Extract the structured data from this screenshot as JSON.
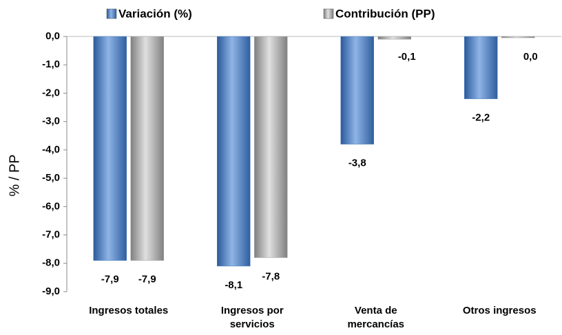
{
  "chart_data": {
    "type": "bar",
    "y_label": "% / PP",
    "categories": [
      "Ingresos totales",
      "Ingresos por servicios",
      "Venta de mercancías",
      "Otros ingresos"
    ],
    "series": [
      {
        "name": "Variación (%)",
        "color": "#4f81bd",
        "values": [
          -7.9,
          -8.1,
          -3.8,
          -2.2
        ],
        "value_labels": [
          "-7,9",
          "-8,1",
          "-3,8",
          "-2,2"
        ]
      },
      {
        "name": "Contribución (PP)",
        "color": "#a6a6a6",
        "values": [
          -7.9,
          -7.8,
          -0.1,
          0.0
        ],
        "value_labels": [
          "-7,9",
          "-7,8",
          "-0,1",
          "0,0"
        ]
      }
    ],
    "ylim": [
      0,
      -9
    ],
    "yticks": [
      {
        "value": 0,
        "label": "0,0"
      },
      {
        "value": -1,
        "label": "-1,0"
      },
      {
        "value": -2,
        "label": "-2,0"
      },
      {
        "value": -3,
        "label": "-3,0"
      },
      {
        "value": -4,
        "label": "-4,0"
      },
      {
        "value": -5,
        "label": "-5,0"
      },
      {
        "value": -6,
        "label": "-6,0"
      },
      {
        "value": -7,
        "label": "-7,0"
      },
      {
        "value": -8,
        "label": "-8,0"
      },
      {
        "value": -9,
        "label": "-9,0"
      }
    ],
    "legend": "top"
  }
}
